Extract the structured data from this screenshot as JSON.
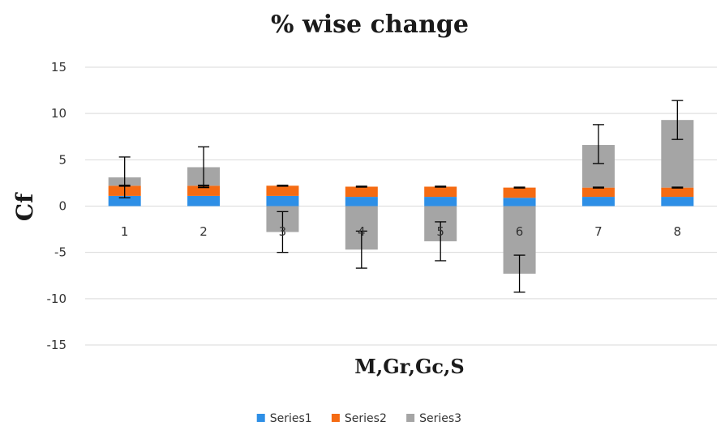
{
  "chart_data": {
    "type": "bar",
    "stacked": true,
    "title": "% wise change",
    "xlabel": "M,Gr,Gc,S",
    "ylabel": "Cf",
    "ylim": [
      -15,
      15
    ],
    "yticks": [
      15,
      10,
      5,
      0,
      -5,
      -10,
      -15
    ],
    "categories": [
      "1",
      "2",
      "3",
      "4",
      "5",
      "6",
      "7",
      "8"
    ],
    "grid": true,
    "legend_position": "bottom",
    "series": [
      {
        "name": "Series1",
        "color": "#2e8fe6",
        "values": [
          1.1,
          1.1,
          1.1,
          1.0,
          1.0,
          0.9,
          1.0,
          1.0
        ]
      },
      {
        "name": "Series2",
        "color": "#f56b13",
        "values": [
          1.1,
          1.1,
          1.1,
          1.1,
          1.1,
          1.1,
          1.0,
          1.0
        ]
      },
      {
        "name": "Series3",
        "color": "#a5a5a5",
        "values": [
          0.9,
          2.0,
          -2.8,
          -4.7,
          -3.8,
          -7.3,
          4.6,
          7.3
        ]
      }
    ],
    "error_bars": [
      {
        "series": "Series2",
        "top": [
          2.2,
          2.2,
          2.2,
          2.1,
          2.1,
          2.0,
          2.0,
          2.0
        ],
        "plus": [
          0.05,
          0.05,
          0.05,
          0.05,
          0.05,
          0.05,
          0.05,
          0.05
        ],
        "minus": [
          0.05,
          0.05,
          0.05,
          0.05,
          0.05,
          0.05,
          0.05,
          0.05
        ]
      },
      {
        "series": "Series3",
        "top": [
          3.1,
          4.2,
          -2.8,
          -4.7,
          -3.8,
          -7.3,
          6.6,
          9.3
        ],
        "plus": [
          2.2,
          2.2,
          2.2,
          2.0,
          2.1,
          2.0,
          2.2,
          2.1
        ],
        "minus": [
          2.2,
          2.2,
          2.2,
          2.0,
          2.1,
          2.0,
          2.0,
          2.1
        ]
      }
    ]
  }
}
